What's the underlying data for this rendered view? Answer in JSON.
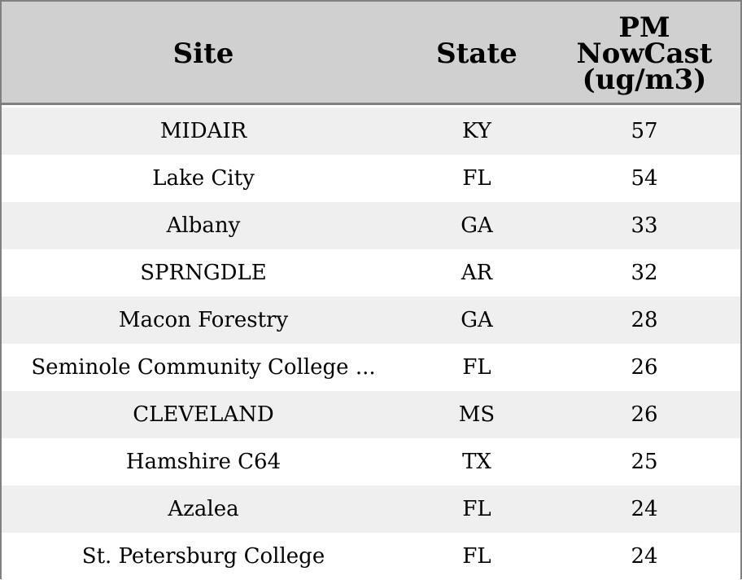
{
  "chart_data": {
    "type": "table",
    "columns": [
      "Site",
      "State",
      "PM\nNowCast\n(ug/m3)"
    ],
    "rows": [
      [
        "MIDAIR",
        "KY",
        "57"
      ],
      [
        "Lake City",
        "FL",
        "54"
      ],
      [
        "Albany",
        "GA",
        "33"
      ],
      [
        "SPRNGDLE",
        "AR",
        "32"
      ],
      [
        "Macon Forestry",
        "GA",
        "28"
      ],
      [
        "Seminole Community College ...",
        "FL",
        "26"
      ],
      [
        "CLEVELAND",
        "MS",
        "26"
      ],
      [
        "Hamshire C64",
        "TX",
        "25"
      ],
      [
        "Azalea",
        "FL",
        "24"
      ],
      [
        "St. Petersburg College",
        "FL",
        "24"
      ]
    ]
  },
  "colors": {
    "header_bg": "#d0d0d0",
    "row_alt": "#efefef",
    "row_plain": "#ffffff",
    "border": "#808080"
  }
}
